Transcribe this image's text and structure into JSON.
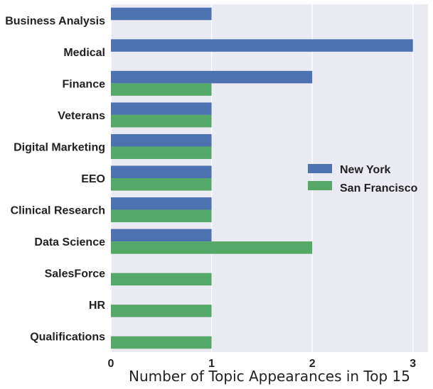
{
  "chart_data": {
    "type": "bar",
    "orientation": "horizontal",
    "categories": [
      "Business Analysis",
      "Medical",
      "Finance",
      "Veterans",
      "Digital Marketing",
      "EEO",
      "Clinical Research",
      "Data Science",
      "SalesForce",
      "HR",
      "Qualifications"
    ],
    "series": [
      {
        "name": "New York",
        "color": "#4c72b0",
        "values": [
          1,
          3,
          2,
          1,
          1,
          1,
          1,
          1,
          0,
          0,
          0
        ]
      },
      {
        "name": "San Francisco",
        "color": "#55a868",
        "values": [
          0,
          0,
          1,
          1,
          1,
          1,
          1,
          2,
          1,
          1,
          1
        ]
      }
    ],
    "xlabel": "Number of Topic Appearances in Top 15",
    "ylabel": "",
    "xlim": [
      0,
      3.15
    ],
    "xticks": [
      "0",
      "1",
      "2",
      "3"
    ],
    "grid": true,
    "legend_position": "center-right",
    "background": "#eaeaf2"
  }
}
